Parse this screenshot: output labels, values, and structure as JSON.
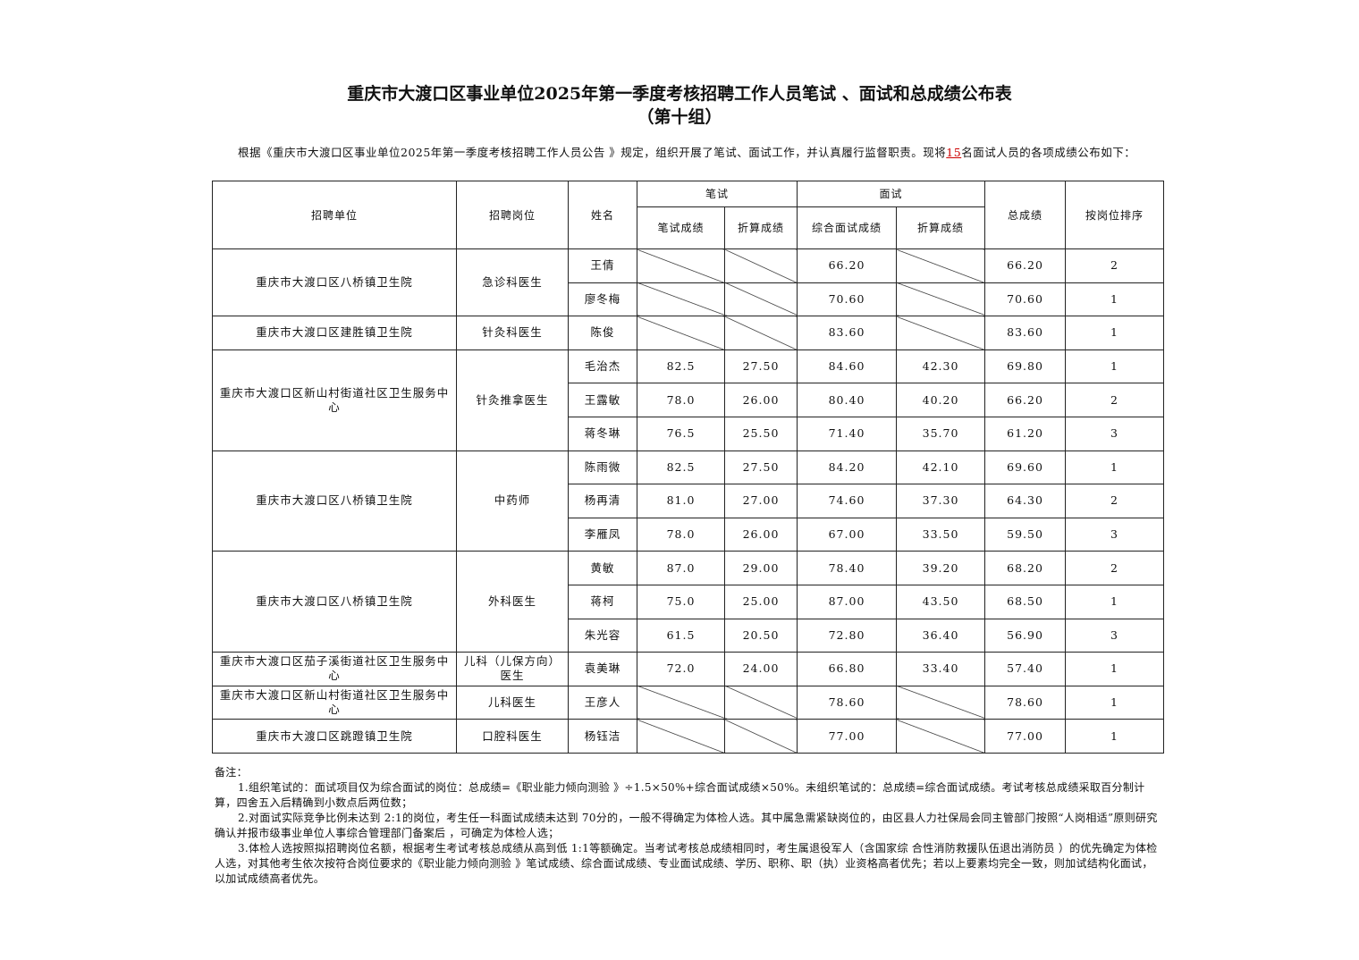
{
  "title": "重庆市大渡口区事业单位2025年第一季度考核招聘工作人员笔试 、面试和总成绩公布表",
  "subtitle": "（第十组）",
  "intro": {
    "before": "根据《重庆市大渡口区事业单位2025年第一季度考核招聘工作人员公告 》规定，组织开展了笔试、面试工作，并认真履行监督职责。现将",
    "count": "15",
    "after": "名面试人员的各项成绩公布如下："
  },
  "headers": {
    "unit": "招聘单位",
    "position": "招聘岗位",
    "name": "姓名",
    "written": "笔试",
    "written_score": "笔试成绩",
    "written_converted": "折算成绩",
    "interview": "面试",
    "interview_score": "综合面试成绩",
    "interview_converted": "折算成绩",
    "total": "总成绩",
    "rank": "按岗位排序"
  },
  "groups": [
    {
      "unit": "重庆市大渡口区八桥镇卫生院",
      "position": "急诊科医生",
      "rows": [
        {
          "name": "王倩",
          "w": null,
          "wc": null,
          "i": "66.20",
          "ic": null,
          "t": "66.20",
          "r": "2"
        },
        {
          "name": "廖冬梅",
          "w": null,
          "wc": null,
          "i": "70.60",
          "ic": null,
          "t": "70.60",
          "r": "1"
        }
      ]
    },
    {
      "unit": "重庆市大渡口区建胜镇卫生院",
      "position": "针灸科医生",
      "rows": [
        {
          "name": "陈俊",
          "w": null,
          "wc": null,
          "i": "83.60",
          "ic": null,
          "t": "83.60",
          "r": "1"
        }
      ]
    },
    {
      "unit": "重庆市大渡口区新山村街道社区卫生服务中心",
      "position": "针灸推拿医生",
      "rows": [
        {
          "name": "毛治杰",
          "w": "82.5",
          "wc": "27.50",
          "i": "84.60",
          "ic": "42.30",
          "t": "69.80",
          "r": "1"
        },
        {
          "name": "王露敏",
          "w": "78.0",
          "wc": "26.00",
          "i": "80.40",
          "ic": "40.20",
          "t": "66.20",
          "r": "2"
        },
        {
          "name": "蒋冬琳",
          "w": "76.5",
          "wc": "25.50",
          "i": "71.40",
          "ic": "35.70",
          "t": "61.20",
          "r": "3"
        }
      ]
    },
    {
      "unit": "重庆市大渡口区八桥镇卫生院",
      "position": "中药师",
      "rows": [
        {
          "name": "陈雨微",
          "w": "82.5",
          "wc": "27.50",
          "i": "84.20",
          "ic": "42.10",
          "t": "69.60",
          "r": "1"
        },
        {
          "name": "杨再清",
          "w": "81.0",
          "wc": "27.00",
          "i": "74.60",
          "ic": "37.30",
          "t": "64.30",
          "r": "2"
        },
        {
          "name": "李雁凤",
          "w": "78.0",
          "wc": "26.00",
          "i": "67.00",
          "ic": "33.50",
          "t": "59.50",
          "r": "3"
        }
      ]
    },
    {
      "unit": "重庆市大渡口区八桥镇卫生院",
      "position": "外科医生",
      "rows": [
        {
          "name": "黄敏",
          "w": "87.0",
          "wc": "29.00",
          "i": "78.40",
          "ic": "39.20",
          "t": "68.20",
          "r": "2"
        },
        {
          "name": "蒋柯",
          "w": "75.0",
          "wc": "25.00",
          "i": "87.00",
          "ic": "43.50",
          "t": "68.50",
          "r": "1"
        },
        {
          "name": "朱光容",
          "w": "61.5",
          "wc": "20.50",
          "i": "72.80",
          "ic": "36.40",
          "t": "56.90",
          "r": "3"
        }
      ]
    },
    {
      "unit": "重庆市大渡口区茄子溪街道社区卫生服务中心",
      "position": "儿科（儿保方向）医生",
      "rows": [
        {
          "name": "袁美琳",
          "w": "72.0",
          "wc": "24.00",
          "i": "66.80",
          "ic": "33.40",
          "t": "57.40",
          "r": "1"
        }
      ]
    },
    {
      "unit": "重庆市大渡口区新山村街道社区卫生服务中心",
      "position": "儿科医生",
      "rows": [
        {
          "name": "王彦人",
          "w": null,
          "wc": null,
          "i": "78.60",
          "ic": null,
          "t": "78.60",
          "r": "1"
        }
      ]
    },
    {
      "unit": "重庆市大渡口区跳蹬镇卫生院",
      "position": "口腔科医生",
      "rows": [
        {
          "name": "杨钰洁",
          "w": null,
          "wc": null,
          "i": "77.00",
          "ic": null,
          "t": "77.00",
          "r": "1"
        }
      ]
    }
  ],
  "notes": {
    "label": "备注：",
    "items": [
      "1.组织笔试的：面试项目仅为综合面试的岗位：总成绩=《职业能力倾向测验 》÷1.5×50%+综合面试成绩×50%。未组织笔试的：总成绩=综合面试成绩。考试考核总成绩采取百分制计算，四舍五入后精确到小数点后两位数；",
      "2.对面试实际竞争比例未达到 2:1的岗位，考生任一科面试成绩未达到 70分的，一般不得确定为体检人选。其中属急需紧缺岗位的，由区县人力社保局会同主管部门按照“人岗相适”原则研究确认并报市级事业单位人事综合管理部门备案后 ，可确定为体检人选；",
      "3.体检人选按照拟招聘岗位名额，根据考生考试考核总成绩从高到低 1:1等额确定。当考试考核总成绩相同时，考生属退役军人（含国家综 合性消防救援队伍退出消防员 ）的优先确定为体检人选，对其他考生依次按符合岗位要求的《职业能力倾向测验 》笔试成绩、综合面试成绩、专业面试成绩、学历、职称、职（执）业资格高者优先；若以上要素均完全一致，则加试结构化面试，以加试成绩高者优先。"
    ]
  }
}
